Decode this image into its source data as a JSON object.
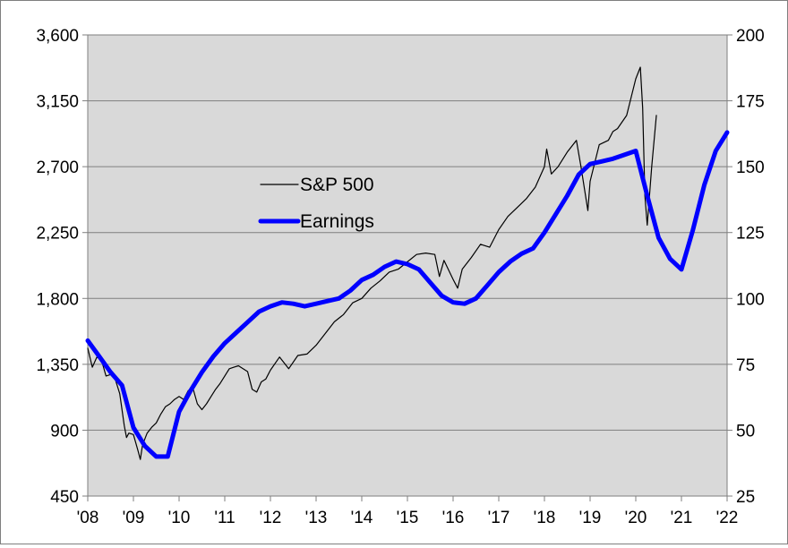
{
  "chart_data": {
    "type": "line",
    "title": "",
    "xlabel": "",
    "ylabel": "",
    "x_ticks": [
      "'08",
      "'09",
      "'10",
      "'11",
      "'12",
      "'13",
      "'14",
      "'15",
      "'16",
      "'17",
      "'18",
      "'19",
      "'20",
      "'21",
      "'22"
    ],
    "xlim": [
      2008,
      2022
    ],
    "y_left": {
      "ylim": [
        450,
        3600
      ],
      "ticks": [
        450,
        900,
        1350,
        1800,
        2250,
        2700,
        3150,
        3600
      ],
      "tick_labels": [
        "450",
        "900",
        "1,350",
        "1,800",
        "2,250",
        "2,700",
        "3,150",
        "3,600"
      ]
    },
    "y_right": {
      "ylim": [
        25,
        200
      ],
      "ticks": [
        25,
        50,
        75,
        100,
        125,
        150,
        175,
        200
      ],
      "tick_labels": [
        "25",
        "50",
        "75",
        "100",
        "125",
        "150",
        "175",
        "200"
      ]
    },
    "grid": {
      "horizontal": true,
      "vertical": false
    },
    "plot_background": "#d9d9d9",
    "legend": {
      "placement": "center-left"
    },
    "series": [
      {
        "name": "S&P 500",
        "axis": "left",
        "color": "#000000",
        "style": "thin",
        "x": [
          2008.0,
          2008.1,
          2008.2,
          2008.3,
          2008.4,
          2008.5,
          2008.6,
          2008.7,
          2008.8,
          2008.85,
          2008.9,
          2009.0,
          2009.1,
          2009.15,
          2009.2,
          2009.3,
          2009.4,
          2009.5,
          2009.6,
          2009.7,
          2009.8,
          2009.9,
          2010.0,
          2010.1,
          2010.2,
          2010.3,
          2010.4,
          2010.5,
          2010.6,
          2010.7,
          2010.8,
          2010.9,
          2011.0,
          2011.1,
          2011.2,
          2011.3,
          2011.4,
          2011.5,
          2011.6,
          2011.7,
          2011.8,
          2011.9,
          2012.0,
          2012.2,
          2012.4,
          2012.6,
          2012.8,
          2013.0,
          2013.2,
          2013.4,
          2013.6,
          2013.8,
          2014.0,
          2014.2,
          2014.4,
          2014.6,
          2014.8,
          2015.0,
          2015.2,
          2015.4,
          2015.6,
          2015.7,
          2015.8,
          2016.0,
          2016.1,
          2016.2,
          2016.4,
          2016.6,
          2016.8,
          2017.0,
          2017.2,
          2017.4,
          2017.6,
          2017.8,
          2018.0,
          2018.05,
          2018.15,
          2018.3,
          2018.5,
          2018.7,
          2018.8,
          2018.95,
          2019.0,
          2019.2,
          2019.4,
          2019.5,
          2019.6,
          2019.8,
          2020.0,
          2020.1,
          2020.15,
          2020.2,
          2020.25,
          2020.35,
          2020.45
        ],
        "values": [
          1460,
          1330,
          1400,
          1380,
          1270,
          1280,
          1250,
          1150,
          930,
          850,
          880,
          870,
          760,
          700,
          800,
          880,
          920,
          950,
          1010,
          1060,
          1080,
          1110,
          1130,
          1110,
          1170,
          1190,
          1080,
          1040,
          1080,
          1130,
          1180,
          1220,
          1270,
          1320,
          1330,
          1340,
          1320,
          1300,
          1180,
          1160,
          1230,
          1250,
          1310,
          1400,
          1320,
          1410,
          1420,
          1480,
          1560,
          1640,
          1690,
          1770,
          1800,
          1870,
          1920,
          1980,
          2000,
          2050,
          2100,
          2110,
          2100,
          1950,
          2060,
          1930,
          1870,
          2000,
          2080,
          2170,
          2150,
          2270,
          2360,
          2420,
          2480,
          2560,
          2700,
          2820,
          2650,
          2700,
          2800,
          2880,
          2700,
          2400,
          2600,
          2850,
          2880,
          2940,
          2960,
          3050,
          3300,
          3380,
          3100,
          2500,
          2300,
          2700,
          3050
        ]
      },
      {
        "name": "Earnings",
        "axis": "right",
        "color": "#0000ff",
        "style": "thick",
        "x": [
          2008.0,
          2008.25,
          2008.5,
          2008.75,
          2009.0,
          2009.25,
          2009.5,
          2009.75,
          2010.0,
          2010.25,
          2010.5,
          2010.75,
          2011.0,
          2011.25,
          2011.5,
          2011.75,
          2012.0,
          2012.25,
          2012.5,
          2012.75,
          2013.0,
          2013.25,
          2013.5,
          2013.75,
          2014.0,
          2014.25,
          2014.5,
          2014.75,
          2015.0,
          2015.25,
          2015.5,
          2015.75,
          2016.0,
          2016.25,
          2016.5,
          2016.75,
          2017.0,
          2017.25,
          2017.5,
          2017.75,
          2018.0,
          2018.25,
          2018.5,
          2018.75,
          2019.0,
          2019.25,
          2019.5,
          2019.75,
          2020.0,
          2020.25,
          2020.5,
          2020.75,
          2021.0,
          2021.25,
          2021.5,
          2021.75,
          2022.0
        ],
        "values": [
          84,
          78,
          72,
          67,
          51,
          44,
          40,
          40,
          57,
          65,
          72,
          78,
          83,
          87,
          91,
          95,
          97,
          98.5,
          98,
          97,
          98,
          99,
          100,
          103,
          107,
          109,
          112,
          114,
          113,
          111,
          106,
          101,
          98.5,
          98,
          100,
          105,
          110,
          114,
          117,
          119,
          125,
          132,
          139,
          147,
          151,
          152,
          153,
          154.5,
          156,
          139,
          123,
          115,
          111,
          126,
          143,
          156,
          163
        ]
      }
    ]
  }
}
